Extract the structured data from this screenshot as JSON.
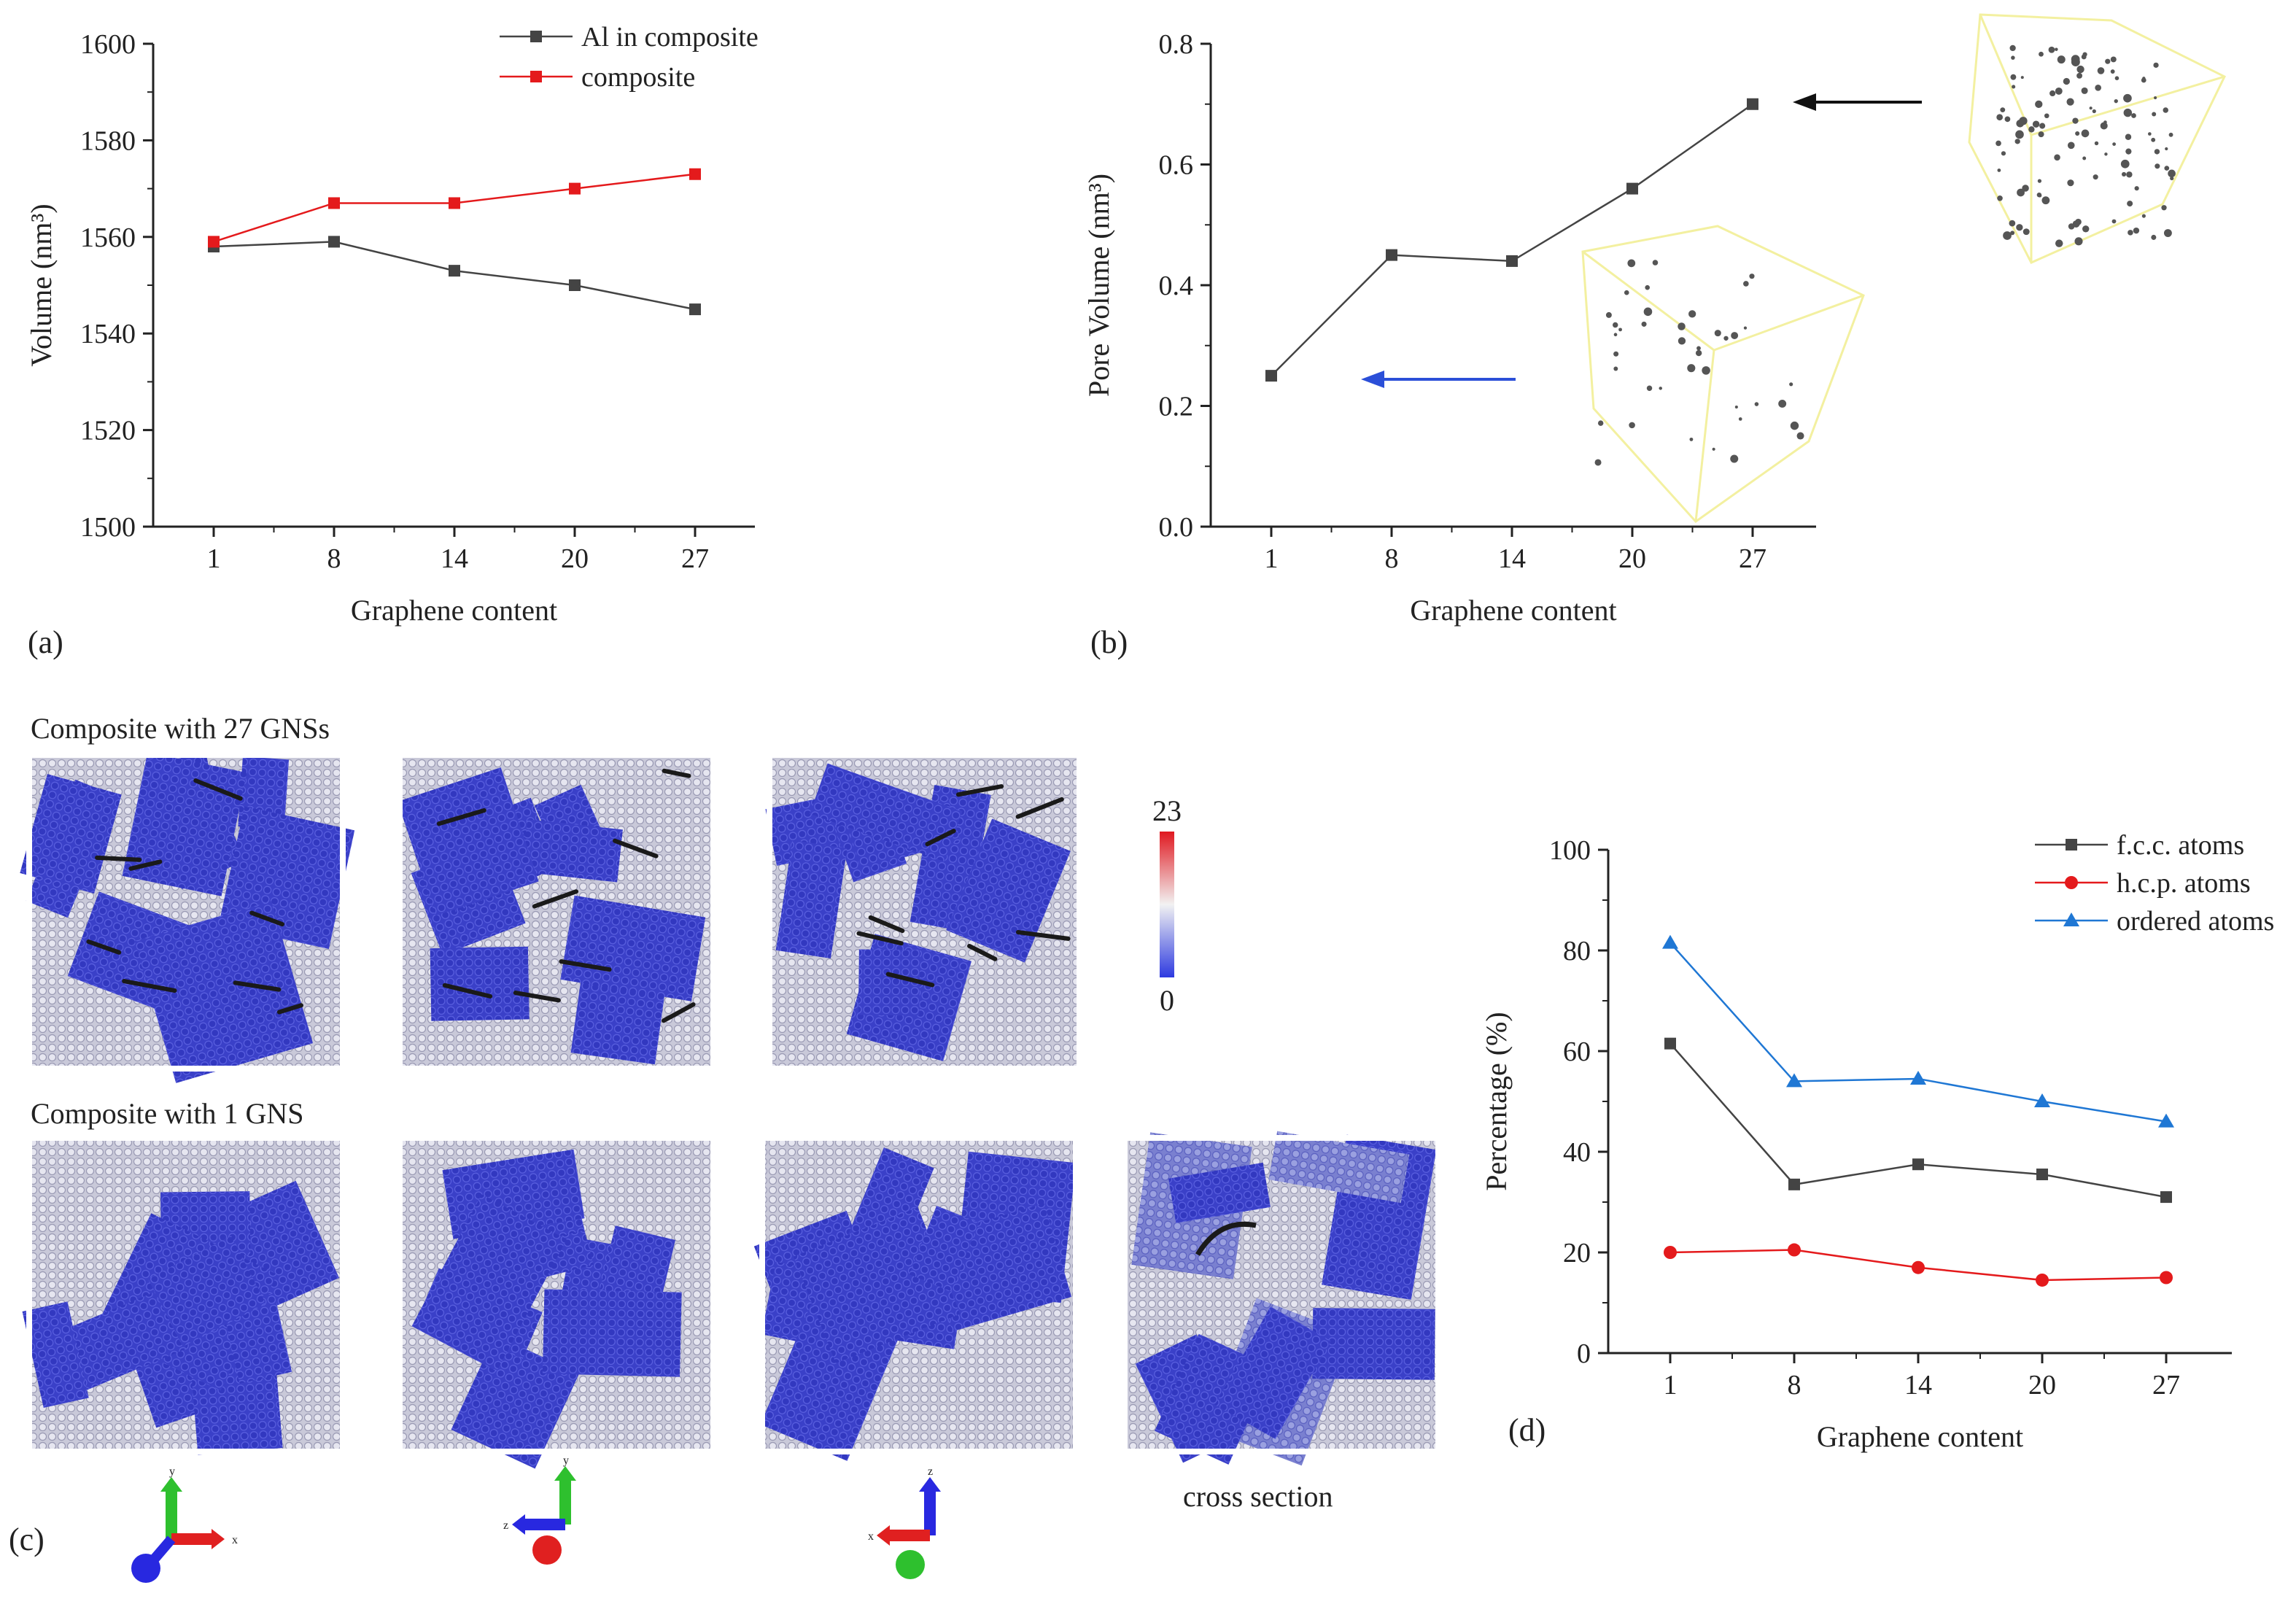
{
  "panels": {
    "a": "(a)",
    "b": "(b)",
    "c": "(c)",
    "d": "(d)"
  },
  "section_titles": {
    "gns27": "Composite with 27 GNSs",
    "gns1": "Composite with 1 GNS",
    "cross_section": "cross section"
  },
  "colorbar": {
    "max": "23",
    "min": "0"
  },
  "axis_glyphs": {
    "view1": {
      "up": "y",
      "right": "x"
    },
    "view2": {
      "up": "y",
      "left": "z"
    },
    "view3": {
      "up": "z",
      "left": "x"
    }
  },
  "chart_data": [
    {
      "id": "a",
      "type": "line",
      "xlabel": "Graphene content",
      "ylabel": "Volume (nm³)",
      "categories": [
        "1",
        "8",
        "14",
        "20",
        "27"
      ],
      "ylim": [
        1500,
        1600
      ],
      "yticks": [
        1500,
        1520,
        1540,
        1560,
        1580,
        1600
      ],
      "legend_position": "top-right",
      "series": [
        {
          "name": "Al in composite",
          "color": "#444444",
          "marker": "square",
          "values": [
            1558,
            1559,
            1553,
            1550,
            1545
          ]
        },
        {
          "name": "composite",
          "color": "#e41a1c",
          "marker": "square",
          "values": [
            1559,
            1567,
            1567,
            1570,
            1573
          ]
        }
      ]
    },
    {
      "id": "b",
      "type": "line",
      "xlabel": "Graphene content",
      "ylabel": "Pore Volume (nm³)",
      "categories": [
        "1",
        "8",
        "14",
        "20",
        "27"
      ],
      "ylim": [
        0.0,
        0.8
      ],
      "yticks": [
        "0.0",
        "0.2",
        "0.4",
        "0.6",
        "0.8"
      ],
      "series": [
        {
          "color": "#444444",
          "marker": "square",
          "values": [
            0.25,
            0.45,
            0.44,
            0.56,
            0.7
          ]
        }
      ]
    },
    {
      "id": "d",
      "type": "line",
      "xlabel": "Graphene content",
      "ylabel": "Percentage (%)",
      "categories": [
        "1",
        "8",
        "14",
        "20",
        "27"
      ],
      "ylim": [
        0,
        100
      ],
      "yticks": [
        0,
        20,
        40,
        60,
        80,
        100
      ],
      "legend_position": "top-right",
      "series": [
        {
          "name": "f.c.c. atoms",
          "color": "#444444",
          "marker": "square",
          "values": [
            61.5,
            33.5,
            37.5,
            35.5,
            31
          ]
        },
        {
          "name": "h.c.p. atoms",
          "color": "#e41a1c",
          "marker": "circle",
          "values": [
            20,
            20.5,
            17,
            14.5,
            15
          ]
        },
        {
          "name": "ordered atoms",
          "color": "#1f77d4",
          "marker": "triangle",
          "values": [
            81.5,
            54,
            54.5,
            50,
            46
          ]
        }
      ]
    }
  ]
}
